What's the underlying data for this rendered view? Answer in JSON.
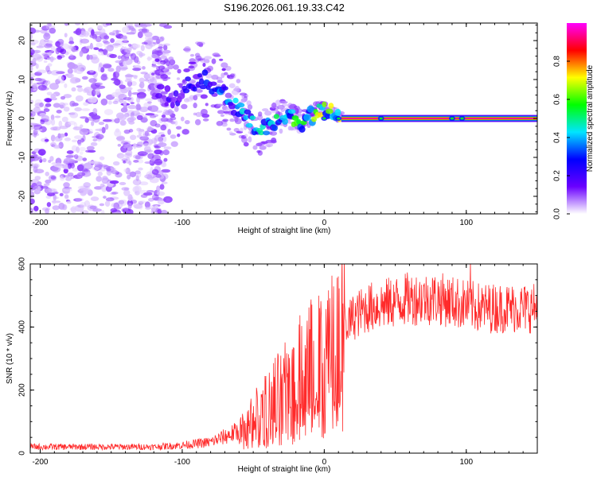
{
  "figure_title": "S196.2026.061.19.33.C42",
  "chart_data": [
    {
      "type": "heatmap",
      "title": "S196.2026.061.19.33.C42",
      "xlabel": "Height of straight line (km)",
      "ylabel": "Frequency (Hz)",
      "xlim": [
        -207,
        150
      ],
      "ylim": [
        -24.5,
        24.5
      ],
      "x_ticks": [
        -200,
        -100,
        0,
        100
      ],
      "y_ticks": [
        -20,
        -10,
        0,
        10,
        20
      ],
      "colorbar": {
        "label": "Normalized spectral amplitude",
        "range": [
          0,
          1
        ],
        "ticks": [
          0.0,
          0.2,
          0.4,
          0.6,
          0.8
        ],
        "tick_labels": [
          "0.0",
          "0.2",
          "0.4",
          "0.6",
          "0.8"
        ],
        "colormap": [
          "#ffffff",
          "#6a00ff",
          "#0000ff",
          "#00e5ff",
          "#00ff00",
          "#ffff00",
          "#ff0000",
          "#ff00ff"
        ]
      },
      "features": {
        "noise_region_x": [
          -207,
          -120
        ],
        "transition_region_x": [
          -120,
          12
        ],
        "steady_line": {
          "x_start": 12,
          "x_end": 150,
          "frequency": 0.0,
          "amplitude": 0.95
        },
        "bright_spots_x": [
          0,
          10,
          40,
          90,
          97
        ],
        "ridge_points": [
          {
            "x": -120,
            "f": 7
          },
          {
            "x": -105,
            "f": 5
          },
          {
            "x": -95,
            "f": 9
          },
          {
            "x": -85,
            "f": 10
          },
          {
            "x": -75,
            "f": 8
          },
          {
            "x": -65,
            "f": 4
          },
          {
            "x": -55,
            "f": 0
          },
          {
            "x": -45,
            "f": -3
          },
          {
            "x": -35,
            "f": -1
          },
          {
            "x": -25,
            "f": 1
          },
          {
            "x": -15,
            "f": -1
          },
          {
            "x": -8,
            "f": 1
          },
          {
            "x": -3,
            "f": 3
          },
          {
            "x": 3,
            "f": 2
          },
          {
            "x": 10,
            "f": 0.5
          }
        ]
      }
    },
    {
      "type": "line",
      "xlabel": "Height of straight line (km)",
      "ylabel": "SNR (10 * v/v)",
      "xlim": [
        -207,
        150
      ],
      "ylim": [
        0,
        600
      ],
      "x_ticks": [
        -200,
        -100,
        0,
        100
      ],
      "y_ticks": [
        0,
        200,
        400,
        600
      ],
      "series": [
        {
          "name": "SNR",
          "color": "#ff2a2a",
          "envelope_x": [
            -207,
            -180,
            -150,
            -120,
            -100,
            -80,
            -60,
            -50,
            -40,
            -30,
            -20,
            -10,
            0,
            10,
            20,
            30,
            40,
            50,
            60,
            70,
            80,
            90,
            100,
            110,
            120,
            130,
            140,
            150
          ],
          "envelope_y": [
            20,
            20,
            20,
            20,
            25,
            35,
            70,
            110,
            150,
            200,
            250,
            280,
            300,
            370,
            430,
            460,
            470,
            480,
            490,
            490,
            490,
            480,
            470,
            460,
            460,
            460,
            460,
            460
          ],
          "noise_amplitude_fraction": 0.5,
          "peak_value": 610,
          "peak_x": 103
        }
      ]
    }
  ]
}
